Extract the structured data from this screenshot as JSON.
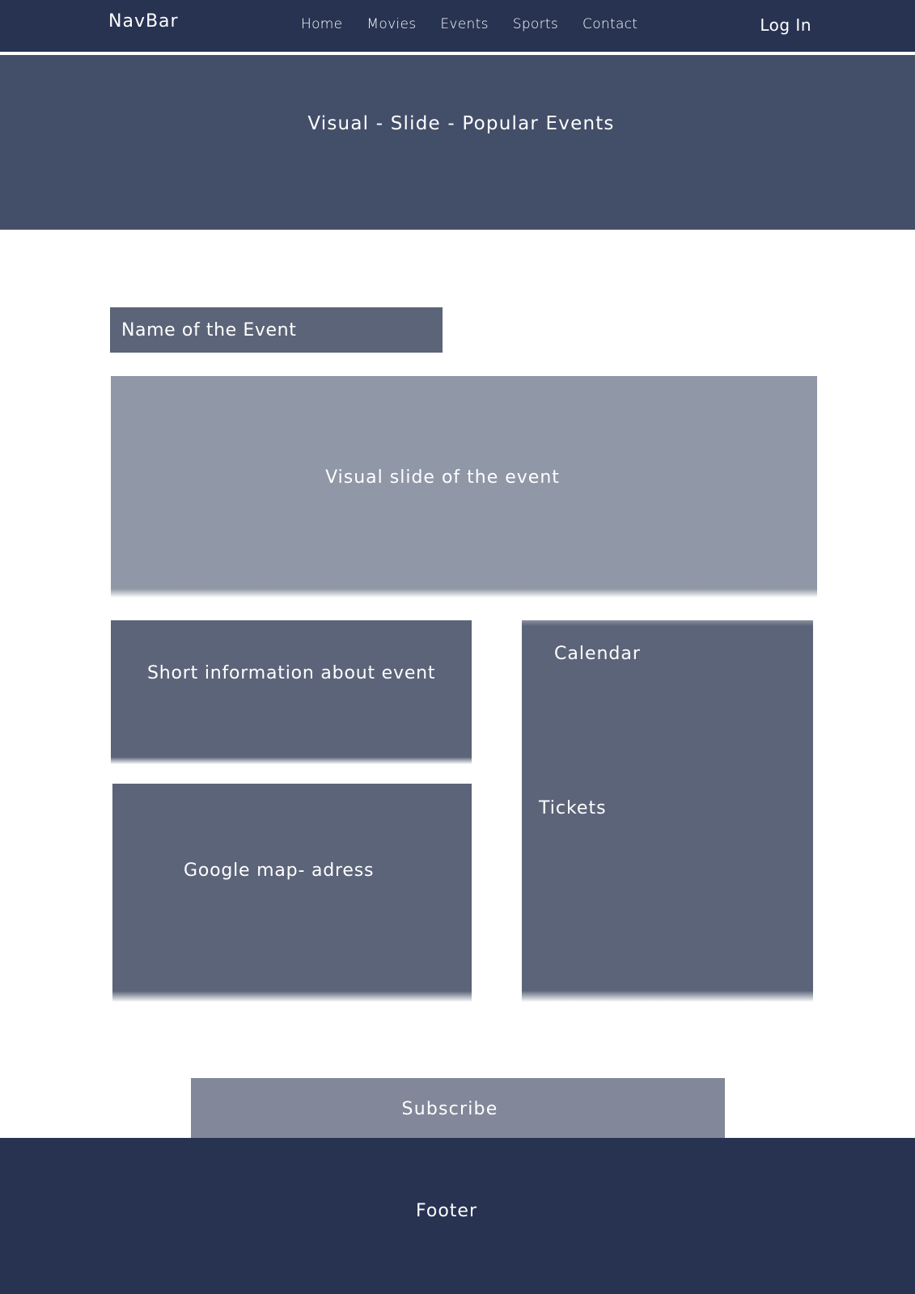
{
  "navbar": {
    "brand": "NavBar",
    "links": [
      {
        "label": "Home"
      },
      {
        "label": "Movies"
      },
      {
        "label": "Events"
      },
      {
        "label": "Sports"
      },
      {
        "label": "Contact"
      }
    ],
    "login_label": "Log In"
  },
  "hero": {
    "text": "Visual - Slide - Popular Events"
  },
  "event": {
    "name": "Name of the Event",
    "slide_text": "Visual slide of the event",
    "info_text": "Short information about event",
    "map_text": "Google map- adress",
    "calendar_label": "Calendar",
    "tickets_label": "Tickets"
  },
  "subscribe": {
    "label": "Subscribe"
  },
  "footer": {
    "text": "Footer"
  },
  "colors": {
    "navbar_bg": "#283352",
    "hero_bg": "#434e69",
    "card_bg": "#5c6479",
    "slide_bg": "#9097a6",
    "subscribe_bg": "#828899",
    "footer_bg": "#283352"
  }
}
